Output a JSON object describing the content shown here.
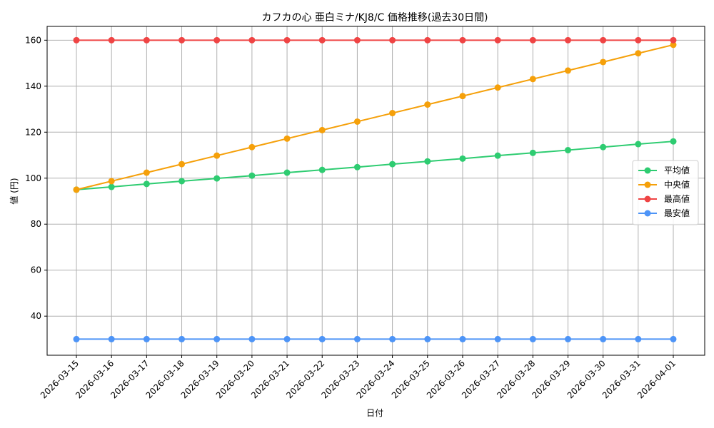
{
  "chart_data": {
    "type": "line",
    "title": "カフカの心 亜白ミナ/KJ8/C 価格推移(過去30日間)",
    "xlabel": "日付",
    "ylabel": "値 (円)",
    "ylim": [
      23,
      166
    ],
    "yticks": [
      40,
      60,
      80,
      100,
      120,
      140,
      160
    ],
    "grid": true,
    "legend_position": "center-right",
    "categories": [
      "2026-03-15",
      "2026-03-16",
      "2026-03-17",
      "2026-03-18",
      "2026-03-19",
      "2026-03-20",
      "2026-03-21",
      "2026-03-22",
      "2026-03-23",
      "2026-03-24",
      "2026-03-25",
      "2026-03-26",
      "2026-03-27",
      "2026-03-28",
      "2026-03-29",
      "2026-03-30",
      "2026-03-31",
      "2026-04-01"
    ],
    "series": [
      {
        "name": "平均値",
        "color": "#2ecc71",
        "values": [
          95,
          96.2,
          97.5,
          98.7,
          99.9,
          101.1,
          102.4,
          103.6,
          104.8,
          106.1,
          107.3,
          108.5,
          109.8,
          111.0,
          112.2,
          113.5,
          114.8,
          116.0
        ]
      },
      {
        "name": "中央値",
        "color": "#f5a00a",
        "values": [
          95,
          98.7,
          102.4,
          106.1,
          109.8,
          113.5,
          117.2,
          120.9,
          124.6,
          128.3,
          132.0,
          135.7,
          139.4,
          143.1,
          146.8,
          150.5,
          154.3,
          158.0
        ]
      },
      {
        "name": "最高値",
        "color": "#ef4444",
        "values": [
          160,
          160,
          160,
          160,
          160,
          160,
          160,
          160,
          160,
          160,
          160,
          160,
          160,
          160,
          160,
          160,
          160,
          160
        ]
      },
      {
        "name": "最安値",
        "color": "#4d94f7",
        "values": [
          30,
          30,
          30,
          30,
          30,
          30,
          30,
          30,
          30,
          30,
          30,
          30,
          30,
          30,
          30,
          30,
          30,
          30
        ]
      }
    ]
  }
}
